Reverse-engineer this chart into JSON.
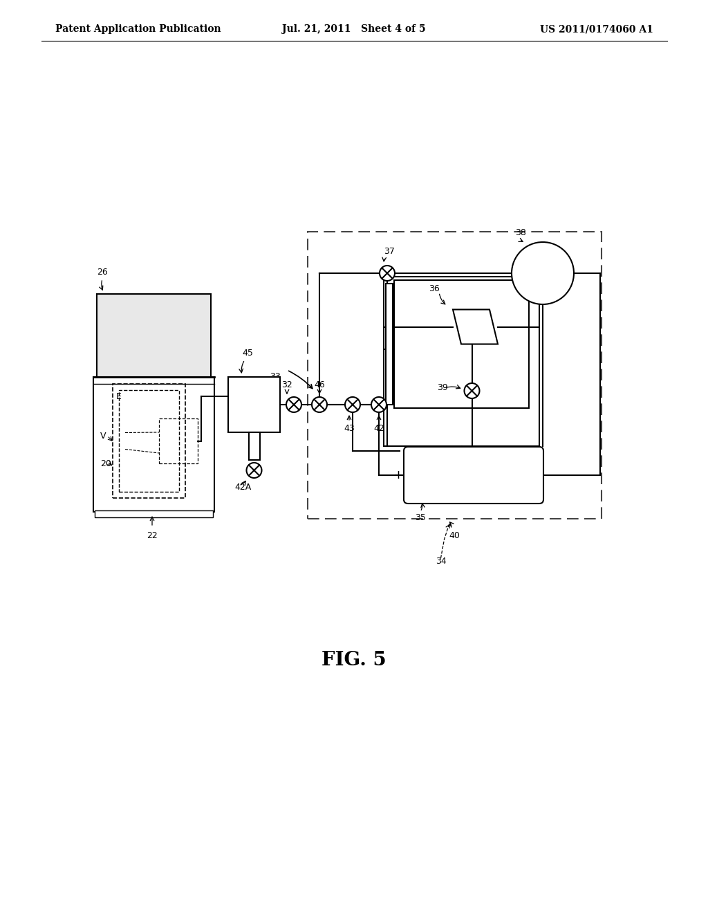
{
  "header_left": "Patent Application Publication",
  "header_center": "Jul. 21, 2011   Sheet 4 of 5",
  "header_right": "US 2011/0174060 A1",
  "fig_label": "FIG. 5",
  "bg_color": "#ffffff",
  "line_color": "#000000"
}
